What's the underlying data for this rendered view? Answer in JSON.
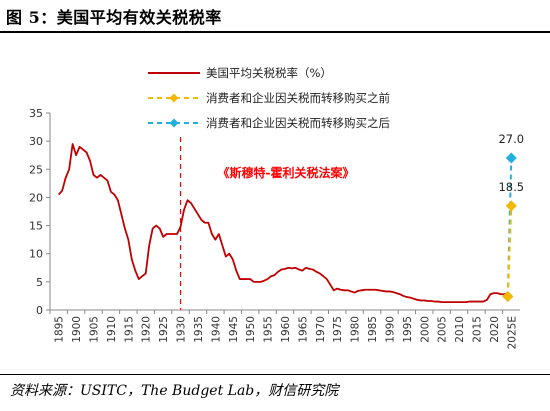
{
  "figure": {
    "title": "图 5：美国平均有效关税税率",
    "source": "资料来源：USITC，The Budget Lab，财信研究院"
  },
  "chart_data": {
    "type": "line",
    "ylim": [
      0,
      35
    ],
    "yticks": [
      0,
      5,
      10,
      15,
      20,
      25,
      30,
      35
    ],
    "xticks": [
      "1895",
      "1900",
      "1905",
      "1910",
      "1915",
      "1920",
      "1925",
      "1930",
      "1935",
      "1940",
      "1945",
      "1950",
      "1955",
      "1960",
      "1965",
      "1970",
      "1975",
      "1980",
      "1985",
      "1990",
      "1995",
      "2000",
      "2005",
      "2010",
      "2015",
      "2020",
      "2025E"
    ],
    "grid": false,
    "legend": {
      "placement": "top",
      "entries": [
        "美国平均关税税率（%）",
        "消费者和企业因关税而转移购买之前",
        "消费者和企业因关税而转移购买之后"
      ]
    },
    "colors": {
      "history": "#c00000",
      "before": "#f5b800",
      "after": "#1fb0e0",
      "vline": "#ff0000",
      "annotation": "#ff0000"
    },
    "annotation": {
      "text": "《斯穆特-霍利关税法案》",
      "year": 1930
    },
    "series": [
      {
        "name": "美国平均关税税率（%）",
        "style": "line",
        "x": [
          1895,
          1896,
          1897,
          1898,
          1899,
          1900,
          1901,
          1902,
          1903,
          1904,
          1905,
          1906,
          1907,
          1908,
          1909,
          1910,
          1911,
          1912,
          1913,
          1914,
          1915,
          1916,
          1917,
          1918,
          1919,
          1920,
          1921,
          1922,
          1923,
          1924,
          1925,
          1926,
          1927,
          1928,
          1929,
          1930,
          1931,
          1932,
          1933,
          1934,
          1935,
          1936,
          1937,
          1938,
          1939,
          1940,
          1941,
          1942,
          1943,
          1944,
          1945,
          1946,
          1947,
          1948,
          1949,
          1950,
          1951,
          1952,
          1953,
          1954,
          1955,
          1956,
          1957,
          1958,
          1959,
          1960,
          1961,
          1962,
          1963,
          1964,
          1965,
          1966,
          1967,
          1968,
          1969,
          1970,
          1971,
          1972,
          1973,
          1974,
          1975,
          1976,
          1977,
          1978,
          1979,
          1980,
          1981,
          1982,
          1983,
          1984,
          1985,
          1986,
          1987,
          1988,
          1989,
          1990,
          1991,
          1992,
          1993,
          1994,
          1995,
          1996,
          1997,
          1998,
          1999,
          2000,
          2001,
          2002,
          2003,
          2004,
          2005,
          2006,
          2007,
          2008,
          2009,
          2010,
          2011,
          2012,
          2013,
          2014,
          2015,
          2016,
          2017,
          2018,
          2019,
          2020,
          2021,
          2022,
          2023,
          2024
        ],
        "y": [
          20.5,
          21.2,
          23.5,
          25.0,
          29.5,
          27.5,
          29.0,
          28.5,
          28.0,
          26.5,
          24.0,
          23.5,
          24.0,
          23.5,
          23.0,
          21.0,
          20.5,
          19.5,
          17.0,
          14.5,
          12.5,
          9.0,
          7.0,
          5.5,
          6.0,
          6.5,
          11.5,
          14.5,
          15.0,
          14.5,
          13.0,
          13.5,
          13.5,
          13.5,
          13.5,
          14.8,
          17.8,
          19.5,
          19.0,
          18.0,
          17.0,
          16.0,
          15.5,
          15.5,
          13.5,
          12.5,
          13.5,
          11.5,
          9.5,
          10.0,
          9.0,
          7.0,
          5.5,
          5.5,
          5.5,
          5.5,
          5.0,
          5.0,
          5.0,
          5.2,
          5.5,
          6.0,
          6.2,
          6.8,
          7.2,
          7.3,
          7.5,
          7.4,
          7.5,
          7.2,
          7.0,
          7.5,
          7.3,
          7.2,
          6.8,
          6.5,
          6.0,
          5.5,
          4.5,
          3.5,
          3.8,
          3.6,
          3.5,
          3.5,
          3.3,
          3.1,
          3.4,
          3.5,
          3.6,
          3.6,
          3.6,
          3.6,
          3.5,
          3.4,
          3.3,
          3.3,
          3.2,
          3.0,
          2.8,
          2.5,
          2.3,
          2.2,
          2.0,
          1.8,
          1.7,
          1.7,
          1.6,
          1.6,
          1.5,
          1.5,
          1.4,
          1.4,
          1.4,
          1.4,
          1.4,
          1.4,
          1.4,
          1.4,
          1.5,
          1.5,
          1.5,
          1.5,
          1.5,
          1.8,
          2.8,
          3.0,
          3.0,
          2.8,
          2.8,
          3.0
        ]
      },
      {
        "name": "消费者和企业因关税而转移购买之前",
        "style": "dashed-diamond",
        "points": [
          {
            "x": "2024",
            "y": 2.4
          },
          {
            "x": "2025E",
            "y": 18.5
          }
        ],
        "label": "18.5"
      },
      {
        "name": "消费者和企业因关税而转移购买之后",
        "style": "dashed-diamond",
        "points": [
          {
            "x": "2024",
            "y": 2.4
          },
          {
            "x": "2025E",
            "y": 27.0
          }
        ],
        "label": "27.0"
      }
    ]
  }
}
